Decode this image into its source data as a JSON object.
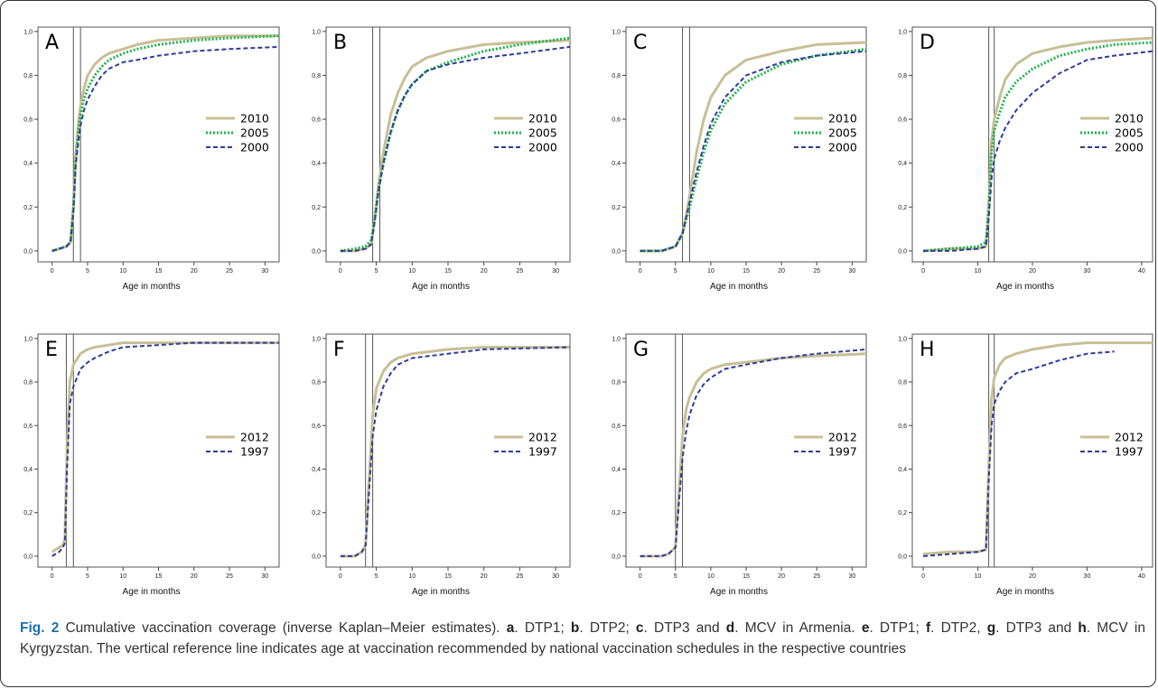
{
  "figure": {
    "caption": {
      "fig_label": "Fig. 2",
      "parts": [
        {
          "t": " Cumulative vaccination coverage (inverse Kaplan–Meier estimates). "
        },
        {
          "b": "a"
        },
        {
          "t": ". DTP1; "
        },
        {
          "b": "b"
        },
        {
          "t": ". DTP2; "
        },
        {
          "b": "c"
        },
        {
          "t": ". DTP3 and "
        },
        {
          "b": "d"
        },
        {
          "t": ". MCV in Armenia. "
        },
        {
          "b": "e"
        },
        {
          "t": ". DTP1; "
        },
        {
          "b": "f"
        },
        {
          "t": ". DTP2, "
        },
        {
          "b": "g"
        },
        {
          "t": ". DTP3 and "
        },
        {
          "b": "h"
        },
        {
          "t": ". MCV in Kyrgyzstan. The vertical reference line indicates age at vaccination recommended by national vaccination schedules in the respective countries"
        }
      ]
    }
  },
  "styles": {
    "2010": {
      "color": "#c8bf96",
      "dash": "",
      "width": 3
    },
    "2012": {
      "color": "#c8bf96",
      "dash": "",
      "width": 3
    },
    "2005": {
      "color": "#22b24c",
      "dash": "2,2",
      "width": 3
    },
    "2000": {
      "color": "#2c3c9c",
      "dash": "5,3",
      "width": 2
    },
    "1997": {
      "color": "#2c3c9c",
      "dash": "5,3",
      "width": 2
    }
  },
  "chart_data": [
    {
      "panel": "A",
      "type": "line",
      "xlabel": "Age in months",
      "xlim": [
        -2,
        32
      ],
      "ylim": [
        -0.05,
        1.02
      ],
      "xticks": [
        0,
        5,
        10,
        15,
        20,
        25,
        30
      ],
      "yticks": [
        0.0,
        0.2,
        0.4,
        0.6,
        0.8,
        1.0
      ],
      "ytick_labels": [
        "0,0",
        "0,2",
        "0,4",
        "0,6",
        "0,8",
        "1,0"
      ],
      "ref_lines": [
        3,
        4
      ],
      "series": [
        {
          "name": "2010",
          "x": [
            0,
            1,
            2,
            2.6,
            3,
            3.3,
            3.7,
            4,
            4.5,
            5,
            6,
            7,
            8,
            10,
            12,
            15,
            20,
            25,
            32
          ],
          "y": [
            0.0,
            0.01,
            0.02,
            0.04,
            0.2,
            0.42,
            0.58,
            0.66,
            0.74,
            0.8,
            0.85,
            0.88,
            0.9,
            0.92,
            0.94,
            0.96,
            0.97,
            0.98,
            0.98
          ]
        },
        {
          "name": "2005",
          "x": [
            0,
            1,
            2,
            2.6,
            3,
            3.3,
            3.7,
            4,
            4.5,
            5,
            6,
            7,
            8,
            10,
            12,
            15,
            20,
            25,
            32
          ],
          "y": [
            0.0,
            0.01,
            0.02,
            0.04,
            0.2,
            0.4,
            0.55,
            0.62,
            0.69,
            0.74,
            0.8,
            0.84,
            0.87,
            0.9,
            0.92,
            0.94,
            0.96,
            0.97,
            0.98
          ]
        },
        {
          "name": "2000",
          "x": [
            0,
            1,
            2,
            2.6,
            3,
            3.3,
            3.7,
            4,
            4.5,
            5,
            6,
            7,
            8,
            10,
            12,
            15,
            20,
            25,
            32
          ],
          "y": [
            0.0,
            0.01,
            0.02,
            0.04,
            0.18,
            0.38,
            0.5,
            0.57,
            0.64,
            0.69,
            0.75,
            0.8,
            0.83,
            0.86,
            0.87,
            0.89,
            0.91,
            0.92,
            0.93
          ]
        }
      ]
    },
    {
      "panel": "B",
      "type": "line",
      "xlabel": "Age in months",
      "xlim": [
        -2,
        32
      ],
      "ylim": [
        -0.05,
        1.02
      ],
      "xticks": [
        0,
        5,
        10,
        15,
        20,
        25,
        30
      ],
      "yticks": [
        0.0,
        0.2,
        0.4,
        0.6,
        0.8,
        1.0
      ],
      "ytick_labels": [
        "0,0",
        "0,2",
        "0,4",
        "0,6",
        "0,8",
        "1,0"
      ],
      "ref_lines": [
        4.5,
        5.5
      ],
      "series": [
        {
          "name": "2010",
          "x": [
            0,
            2,
            3.5,
            4.3,
            4.8,
            5.3,
            6,
            7,
            8,
            9,
            10,
            12,
            15,
            20,
            25,
            32
          ],
          "y": [
            0.0,
            0.0,
            0.01,
            0.03,
            0.15,
            0.3,
            0.45,
            0.62,
            0.72,
            0.79,
            0.84,
            0.88,
            0.91,
            0.94,
            0.95,
            0.96
          ]
        },
        {
          "name": "2005",
          "x": [
            0,
            2,
            3.5,
            4.3,
            4.8,
            5.3,
            6,
            7,
            8,
            9,
            10,
            12,
            15,
            20,
            25,
            32
          ],
          "y": [
            0.0,
            0.01,
            0.02,
            0.05,
            0.15,
            0.28,
            0.4,
            0.54,
            0.64,
            0.71,
            0.76,
            0.82,
            0.86,
            0.91,
            0.94,
            0.97
          ]
        },
        {
          "name": "2000",
          "x": [
            0,
            2,
            3.5,
            4.3,
            4.8,
            5.3,
            6,
            7,
            8,
            9,
            10,
            12,
            15,
            20,
            25,
            32
          ],
          "y": [
            0.0,
            0.0,
            0.01,
            0.03,
            0.14,
            0.27,
            0.4,
            0.54,
            0.64,
            0.71,
            0.76,
            0.82,
            0.85,
            0.88,
            0.9,
            0.93
          ]
        }
      ]
    },
    {
      "panel": "C",
      "type": "line",
      "xlabel": "Age in months",
      "xlim": [
        -2,
        32
      ],
      "ylim": [
        -0.05,
        1.02
      ],
      "xticks": [
        0,
        5,
        10,
        15,
        20,
        25,
        30
      ],
      "yticks": [
        0.0,
        0.2,
        0.4,
        0.6,
        0.8,
        1.0
      ],
      "ytick_labels": [
        "0,0",
        "0,2",
        "0,4",
        "0,6",
        "0,8",
        "1,0"
      ],
      "ref_lines": [
        6,
        7
      ],
      "series": [
        {
          "name": "2010",
          "x": [
            0,
            3,
            5,
            6,
            6.5,
            7,
            8,
            9,
            10,
            12,
            15,
            20,
            25,
            32
          ],
          "y": [
            0.0,
            0.0,
            0.02,
            0.08,
            0.16,
            0.25,
            0.45,
            0.6,
            0.7,
            0.8,
            0.87,
            0.91,
            0.94,
            0.95
          ]
        },
        {
          "name": "2005",
          "x": [
            0,
            3,
            5,
            6,
            6.5,
            7,
            8,
            9,
            10,
            12,
            15,
            20,
            25,
            32
          ],
          "y": [
            0.0,
            0.0,
            0.02,
            0.08,
            0.14,
            0.2,
            0.33,
            0.45,
            0.55,
            0.67,
            0.77,
            0.85,
            0.89,
            0.92
          ]
        },
        {
          "name": "2000",
          "x": [
            0,
            3,
            5,
            6,
            6.5,
            7,
            8,
            9,
            10,
            12,
            15,
            20,
            25,
            32
          ],
          "y": [
            0.0,
            0.0,
            0.02,
            0.08,
            0.15,
            0.22,
            0.36,
            0.48,
            0.58,
            0.7,
            0.8,
            0.86,
            0.89,
            0.91
          ]
        }
      ]
    },
    {
      "panel": "D",
      "type": "line",
      "xlabel": "Age in months",
      "xlim": [
        -2,
        42
      ],
      "ylim": [
        -0.05,
        1.02
      ],
      "xticks": [
        0,
        10,
        20,
        30,
        40
      ],
      "yticks": [
        0.0,
        0.2,
        0.4,
        0.6,
        0.8,
        1.0
      ],
      "ytick_labels": [
        "0,0",
        "0,2",
        "0,4",
        "0,6",
        "0,8",
        "1,0"
      ],
      "ref_lines": [
        12,
        13
      ],
      "series": [
        {
          "name": "2010",
          "x": [
            0,
            5,
            10,
            11.5,
            12,
            12.5,
            13,
            14,
            15,
            17,
            20,
            25,
            30,
            35,
            42
          ],
          "y": [
            0.0,
            0.01,
            0.01,
            0.02,
            0.2,
            0.5,
            0.6,
            0.7,
            0.78,
            0.85,
            0.9,
            0.93,
            0.95,
            0.96,
            0.97
          ]
        },
        {
          "name": "2005",
          "x": [
            0,
            5,
            10,
            11.5,
            12,
            12.5,
            13,
            14,
            15,
            17,
            20,
            25,
            30,
            35,
            42
          ],
          "y": [
            0.0,
            0.01,
            0.02,
            0.04,
            0.2,
            0.45,
            0.55,
            0.63,
            0.7,
            0.77,
            0.83,
            0.89,
            0.92,
            0.94,
            0.95
          ]
        },
        {
          "name": "2000",
          "x": [
            0,
            5,
            10,
            11.5,
            12,
            12.5,
            13,
            14,
            15,
            17,
            20,
            25,
            30,
            35,
            42
          ],
          "y": [
            0.0,
            0.0,
            0.01,
            0.02,
            0.15,
            0.33,
            0.42,
            0.5,
            0.56,
            0.64,
            0.72,
            0.81,
            0.87,
            0.89,
            0.91
          ]
        }
      ]
    },
    {
      "panel": "E",
      "type": "line",
      "xlabel": "Age in months",
      "xlim": [
        -2,
        32
      ],
      "ylim": [
        -0.05,
        1.02
      ],
      "xticks": [
        0,
        5,
        10,
        15,
        20,
        25,
        30
      ],
      "yticks": [
        0.0,
        0.2,
        0.4,
        0.6,
        0.8,
        1.0
      ],
      "ytick_labels": [
        "0,0",
        "0,2",
        "0,4",
        "0,6",
        "0,8",
        "1,0"
      ],
      "ref_lines": [
        2,
        3
      ],
      "series": [
        {
          "name": "2012",
          "x": [
            0,
            0.5,
            1,
            1.5,
            1.8,
            2.1,
            2.5,
            3,
            4,
            5,
            6,
            8,
            10,
            15,
            20,
            32
          ],
          "y": [
            0.02,
            0.03,
            0.04,
            0.05,
            0.08,
            0.5,
            0.8,
            0.88,
            0.93,
            0.95,
            0.96,
            0.97,
            0.98,
            0.98,
            0.98,
            0.98
          ]
        },
        {
          "name": "1997",
          "x": [
            0,
            0.5,
            1,
            1.5,
            1.8,
            2.1,
            2.5,
            3,
            4,
            5,
            6,
            8,
            10,
            15,
            20,
            32
          ],
          "y": [
            0.0,
            0.01,
            0.02,
            0.04,
            0.06,
            0.4,
            0.7,
            0.78,
            0.86,
            0.89,
            0.91,
            0.94,
            0.96,
            0.97,
            0.98,
            0.98
          ]
        }
      ]
    },
    {
      "panel": "F",
      "type": "line",
      "xlabel": "Age in months",
      "xlim": [
        -2,
        32
      ],
      "ylim": [
        -0.05,
        1.02
      ],
      "xticks": [
        0,
        5,
        10,
        15,
        20,
        25,
        30
      ],
      "yticks": [
        0.0,
        0.2,
        0.4,
        0.6,
        0.8,
        1.0
      ],
      "ytick_labels": [
        "0,0",
        "0,2",
        "0,4",
        "0,6",
        "0,8",
        "1,0"
      ],
      "ref_lines": [
        3.5,
        4.5
      ],
      "series": [
        {
          "name": "2012",
          "x": [
            0,
            2,
            3,
            3.5,
            4,
            4.5,
            5,
            6,
            7,
            8,
            10,
            15,
            20,
            32
          ],
          "y": [
            0.0,
            0.0,
            0.02,
            0.05,
            0.35,
            0.65,
            0.77,
            0.85,
            0.89,
            0.91,
            0.93,
            0.95,
            0.96,
            0.96
          ]
        },
        {
          "name": "1997",
          "x": [
            0,
            2,
            3,
            3.5,
            4,
            4.5,
            5,
            6,
            7,
            8,
            10,
            15,
            20,
            32
          ],
          "y": [
            0.0,
            0.0,
            0.02,
            0.05,
            0.3,
            0.55,
            0.67,
            0.78,
            0.84,
            0.88,
            0.91,
            0.93,
            0.95,
            0.96
          ]
        }
      ]
    },
    {
      "panel": "G",
      "type": "line",
      "xlabel": "Age in months",
      "xlim": [
        -2,
        32
      ],
      "ylim": [
        -0.05,
        1.02
      ],
      "xticks": [
        0,
        5,
        10,
        15,
        20,
        25,
        30
      ],
      "yticks": [
        0.0,
        0.2,
        0.4,
        0.6,
        0.8,
        1.0
      ],
      "ytick_labels": [
        "0,0",
        "0,2",
        "0,4",
        "0,6",
        "0,8",
        "1,0"
      ],
      "ref_lines": [
        5,
        6
      ],
      "series": [
        {
          "name": "2012",
          "x": [
            0,
            3,
            4,
            5,
            5.5,
            6,
            6.5,
            7,
            8,
            9,
            10,
            12,
            15,
            20,
            25,
            32
          ],
          "y": [
            0.0,
            0.0,
            0.01,
            0.04,
            0.3,
            0.55,
            0.67,
            0.73,
            0.8,
            0.84,
            0.86,
            0.88,
            0.89,
            0.91,
            0.92,
            0.93
          ]
        },
        {
          "name": "1997",
          "x": [
            0,
            3,
            4,
            5,
            5.5,
            6,
            6.5,
            7,
            8,
            9,
            10,
            12,
            15,
            20,
            25,
            32
          ],
          "y": [
            0.0,
            0.0,
            0.01,
            0.04,
            0.25,
            0.45,
            0.57,
            0.65,
            0.74,
            0.79,
            0.82,
            0.86,
            0.88,
            0.91,
            0.93,
            0.95
          ]
        }
      ]
    },
    {
      "panel": "H",
      "type": "line",
      "xlabel": "Age in months",
      "xlim": [
        -2,
        42
      ],
      "ylim": [
        -0.05,
        1.02
      ],
      "xticks": [
        0,
        10,
        20,
        30,
        40
      ],
      "yticks": [
        0.0,
        0.2,
        0.4,
        0.6,
        0.8,
        1.0
      ],
      "ytick_labels": [
        "0,0",
        "0,2",
        "0,4",
        "0,6",
        "0,8",
        "1,0"
      ],
      "ref_lines": [
        12,
        13
      ],
      "series": [
        {
          "name": "2012",
          "x": [
            0,
            5,
            10,
            11.5,
            12,
            12.5,
            13,
            14,
            15,
            17,
            20,
            25,
            30,
            42
          ],
          "y": [
            0.01,
            0.02,
            0.02,
            0.03,
            0.4,
            0.72,
            0.82,
            0.88,
            0.91,
            0.93,
            0.95,
            0.97,
            0.98,
            0.98
          ]
        },
        {
          "name": "1997",
          "x": [
            0,
            5,
            10,
            11.5,
            12,
            12.5,
            13,
            14,
            15,
            17,
            20,
            25,
            30,
            35
          ],
          "y": [
            0.0,
            0.01,
            0.02,
            0.03,
            0.35,
            0.6,
            0.7,
            0.76,
            0.8,
            0.84,
            0.86,
            0.9,
            0.93,
            0.94
          ]
        }
      ]
    }
  ]
}
